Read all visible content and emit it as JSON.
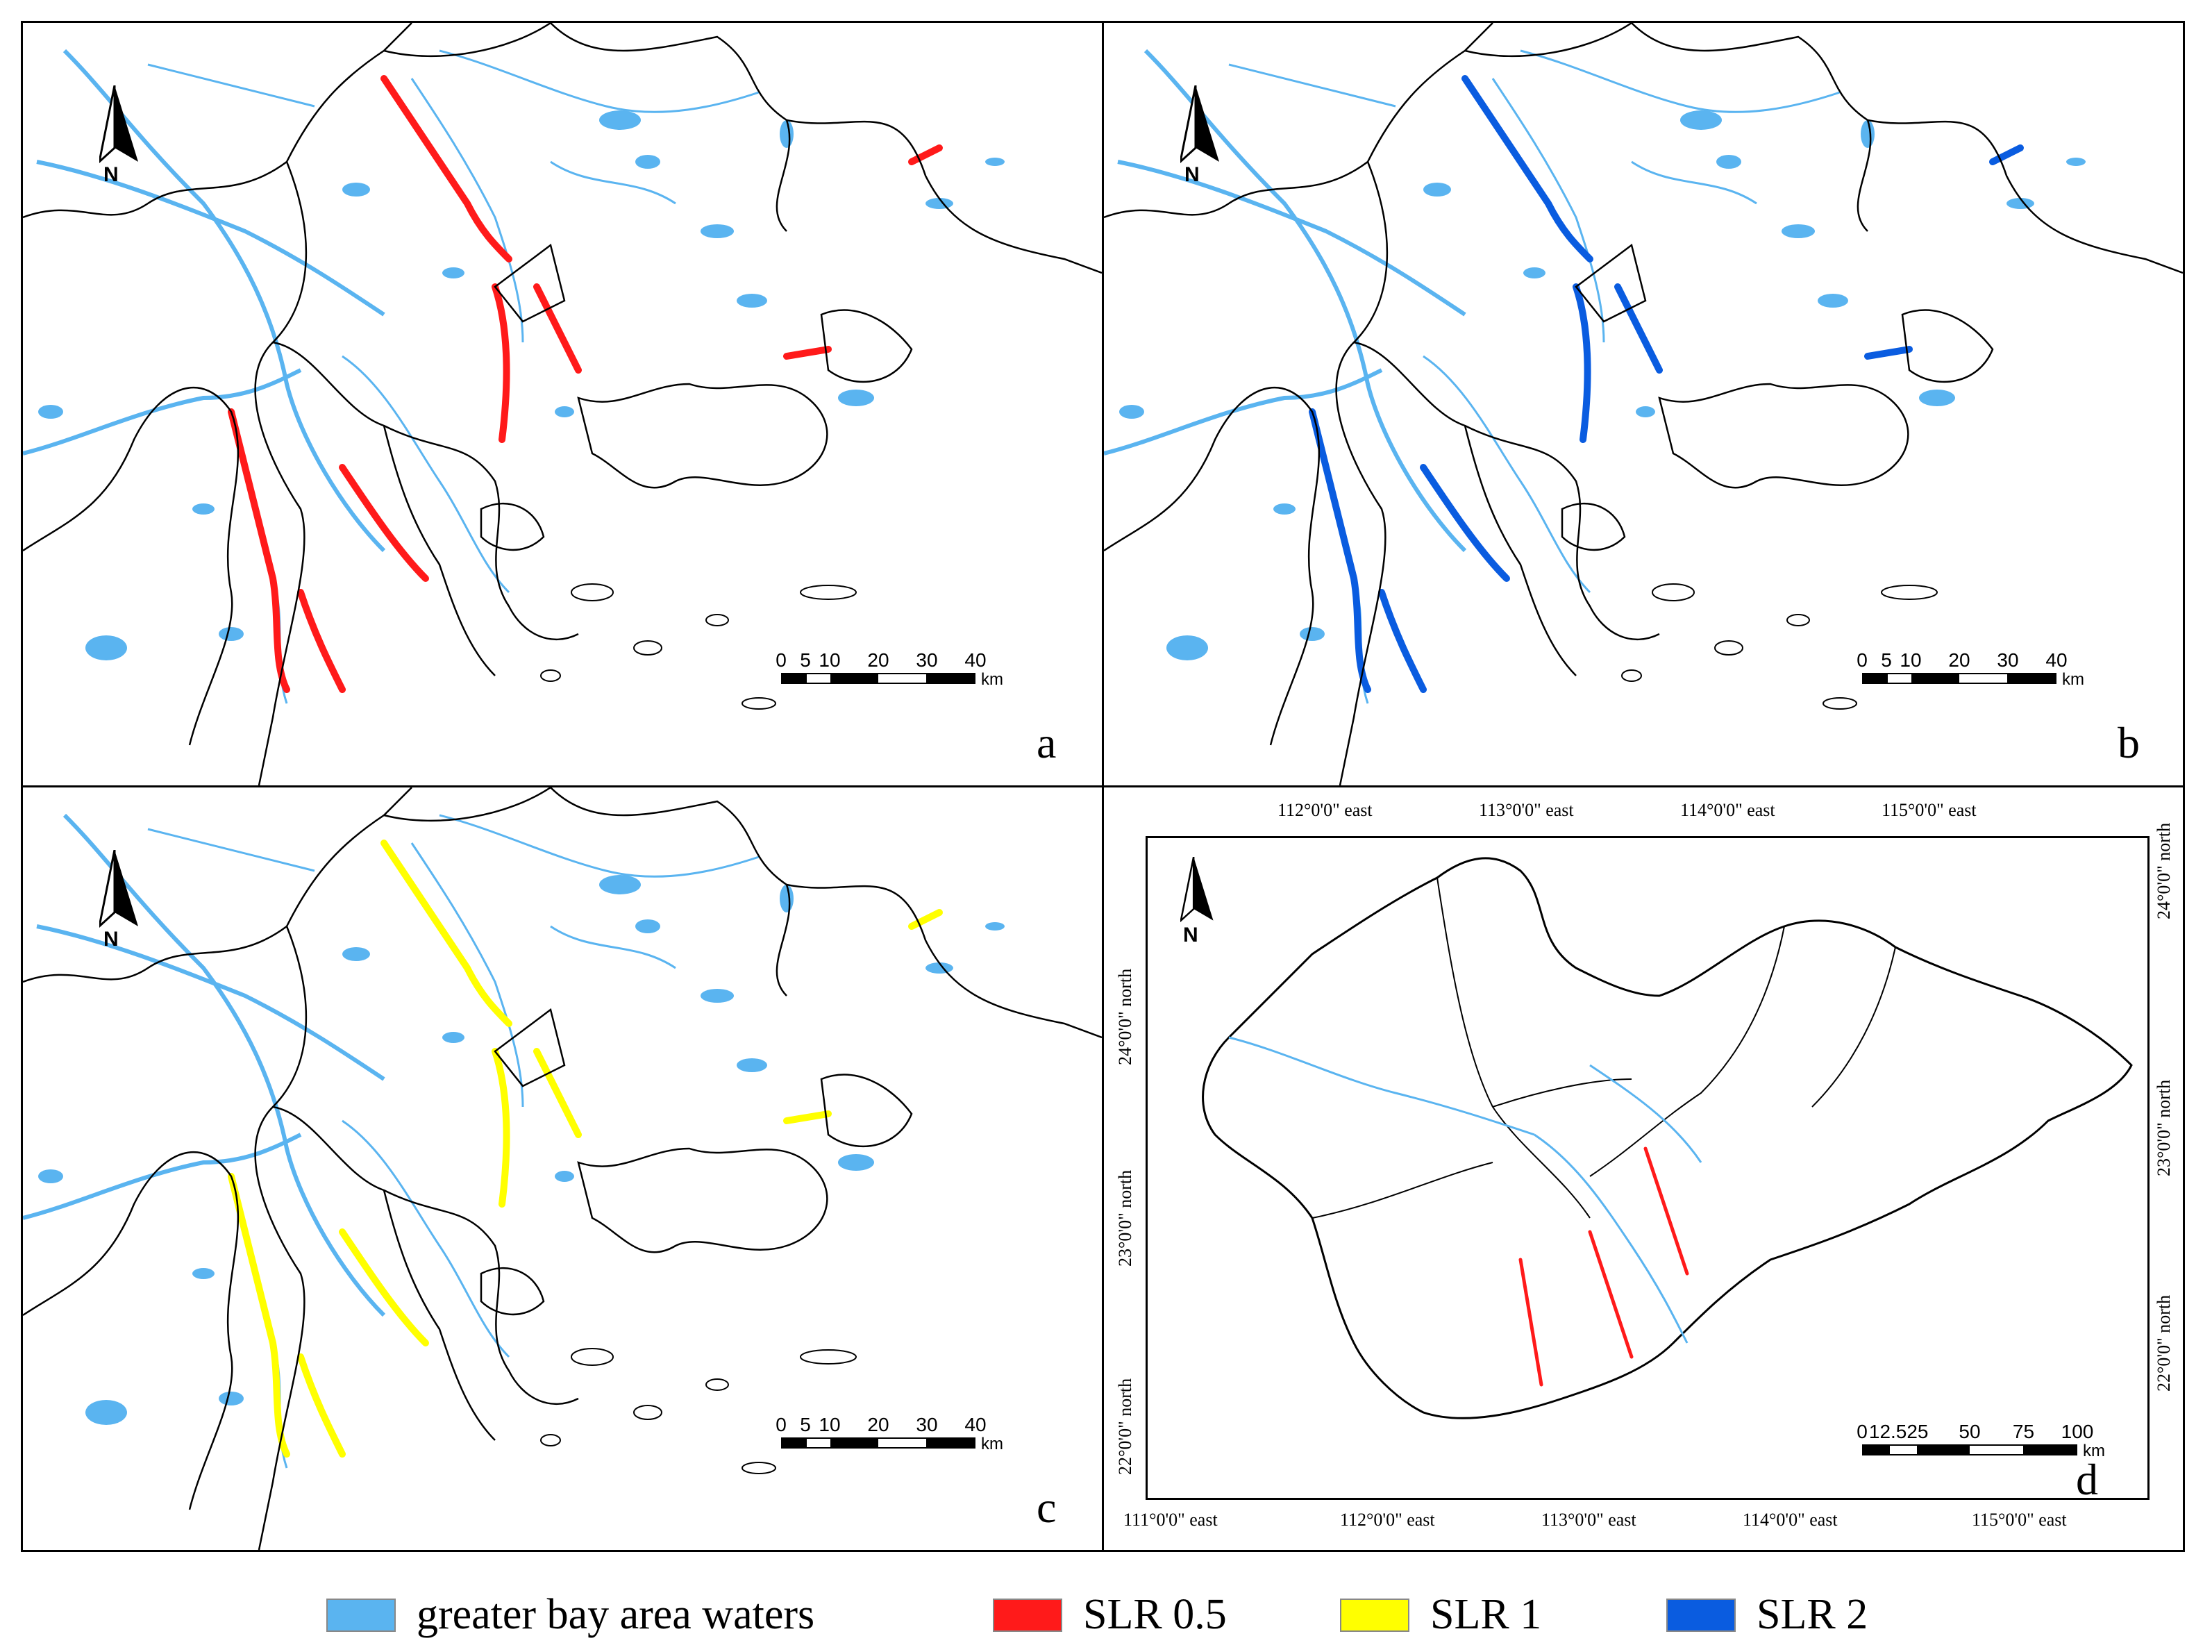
{
  "colors": {
    "waters": "#5ab4f0",
    "slr05": "#ff1a1a",
    "slr1": "#ffff00",
    "slr2": "#0a5ce0",
    "boundary": "#000000"
  },
  "panels": [
    {
      "letter": "a",
      "overlay": "slr05",
      "scale": [
        "0",
        "5",
        "10",
        "20",
        "30",
        "40"
      ],
      "unit": "km",
      "north": "N"
    },
    {
      "letter": "b",
      "overlay": "slr2",
      "scale": [
        "0",
        "5",
        "10",
        "20",
        "30",
        "40"
      ],
      "unit": "km",
      "north": "N"
    },
    {
      "letter": "c",
      "overlay": "slr1",
      "scale": [
        "0",
        "5",
        "10",
        "20",
        "30",
        "40"
      ],
      "unit": "km",
      "north": "N"
    },
    {
      "letter": "d",
      "overlay": "slr05",
      "scale": [
        "0",
        "12.525",
        "50",
        "75",
        "100"
      ],
      "unit": "km",
      "north": "N"
    }
  ],
  "overview": {
    "top_labels": [
      "112°0'0\"  east",
      "113°0'0\"  east",
      "114°0'0\"  east",
      "115°0'0\"  east"
    ],
    "bottom_labels": [
      "111°0'0\" east",
      "112°0'0\"  east",
      "113°0'0\"  east",
      "114°0'0\"  east",
      "115°0'0\" east"
    ],
    "left_labels": [
      "24°0'0\" north",
      "23°0'0\" north",
      "22°0'0\" north"
    ],
    "right_labels": [
      "24°0'0\" north",
      "23°0'0\" north",
      "22°0'0\" north"
    ]
  },
  "legend": [
    {
      "label": "greater bay area waters",
      "color": "waters"
    },
    {
      "label": "SLR 0.5",
      "color": "slr05"
    },
    {
      "label": "SLR 1",
      "color": "slr1"
    },
    {
      "label": "SLR 2",
      "color": "slr2"
    }
  ]
}
